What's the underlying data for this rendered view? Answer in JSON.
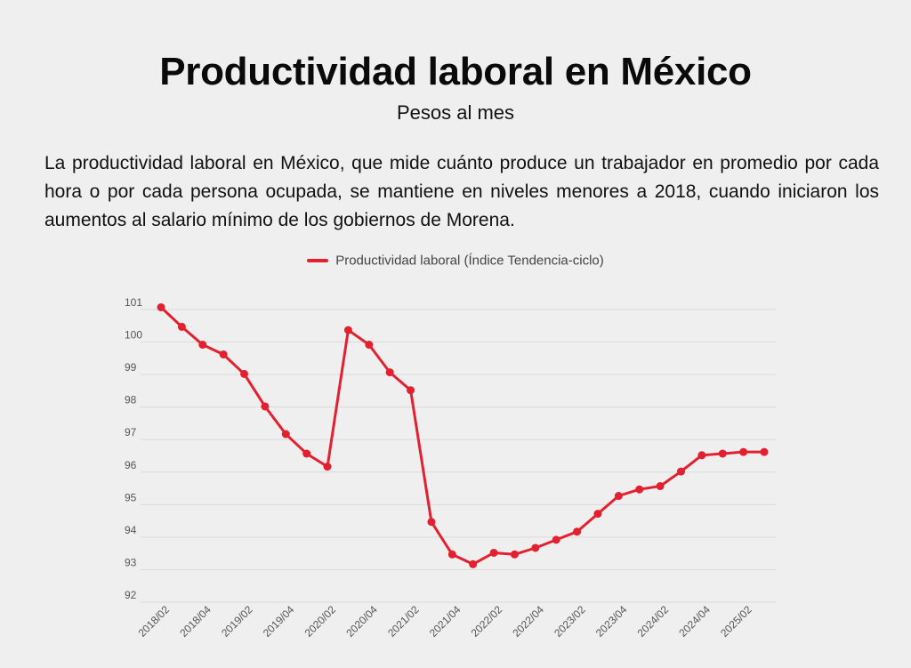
{
  "header": {
    "title": "Productividad laboral en México",
    "subtitle": "Pesos al mes",
    "description": "La productividad laboral en México, que mide cuánto produce un trabajador en promedio por cada hora o por cada persona ocupada, se mantiene en niveles menores a 2018, cuando iniciaron los aumentos al salario mínimo de los gobiernos de Morena."
  },
  "colors": {
    "series": "#e3202f",
    "background": "#efefef",
    "grid": "#dadada"
  },
  "chart_data": {
    "type": "line",
    "title": "Productividad laboral en México",
    "subtitle": "Pesos al mes",
    "legend_position": "top-center",
    "grid": true,
    "ylim": [
      92,
      101
    ],
    "yticks": [
      92,
      93,
      94,
      95,
      96,
      97,
      98,
      99,
      100,
      101
    ],
    "xtick_labels": [
      "2018/02",
      "2018/04",
      "2019/02",
      "2019/04",
      "2020/02",
      "2020/04",
      "2021/02",
      "2021/04",
      "2022/02",
      "2022/04",
      "2023/02",
      "2023/04",
      "2024/02",
      "2024/04",
      "2025/02"
    ],
    "series": [
      {
        "name": "Productividad laboral (Índice Tendencia-ciclo)",
        "values": [
          100.85,
          100.25,
          99.7,
          99.4,
          98.8,
          97.8,
          96.95,
          96.35,
          95.95,
          100.15,
          99.7,
          98.85,
          98.3,
          94.25,
          93.25,
          92.95,
          93.3,
          93.25,
          93.45,
          93.7,
          93.95,
          94.5,
          95.05,
          95.25,
          95.35,
          95.8,
          96.3,
          96.35,
          96.4,
          96.4
        ]
      }
    ]
  }
}
